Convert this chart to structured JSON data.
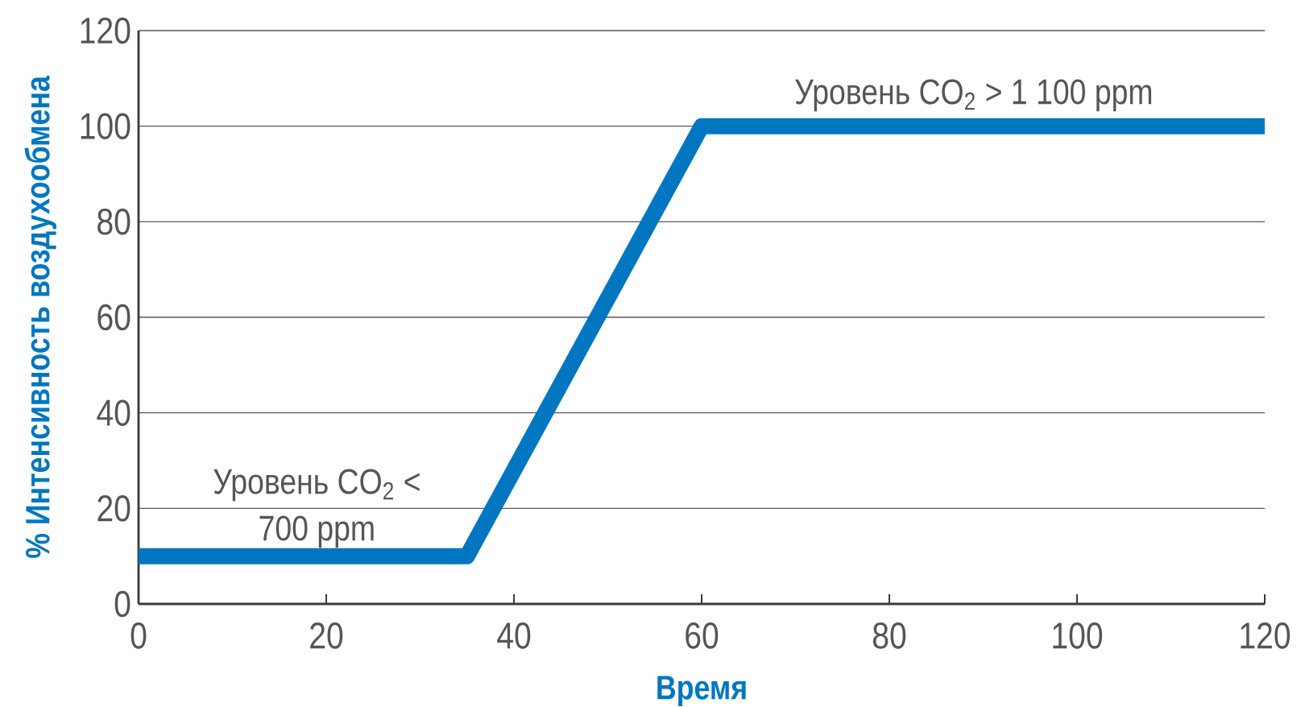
{
  "chart_data": {
    "type": "line",
    "xlabel": "Время",
    "ylabel": "% Интенсивность воздухообмена",
    "x": [
      0,
      35,
      60,
      120
    ],
    "series": [
      {
        "color": "#0077c0",
        "values": [
          10,
          10,
          100,
          100
        ]
      }
    ],
    "xlim": [
      0,
      120
    ],
    "ylim": [
      0,
      120
    ],
    "xticks": [
      0,
      20,
      40,
      60,
      80,
      100,
      120
    ],
    "yticks": [
      0,
      20,
      40,
      60,
      80,
      100,
      120
    ],
    "grid": "y",
    "line_style": "solid",
    "annotations": [
      {
        "text": "Уровень CO$_{2}$ < 700 ppm",
        "x": 19,
        "y": 10
      },
      {
        "text": "Уровень CO$_{2}$ > 1 100 ppm",
        "x": 89,
        "y": 100
      }
    ]
  }
}
